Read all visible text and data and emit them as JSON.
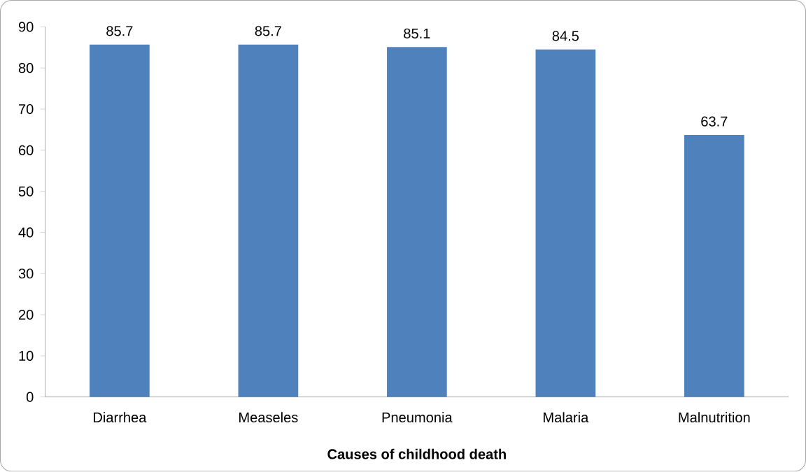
{
  "chart_data": {
    "type": "bar",
    "xlabel": "Causes of childhood death",
    "categories": [
      "Diarrhea",
      "Measeles",
      "Pneumonia",
      "Malaria",
      "Malnutrition"
    ],
    "values": [
      85.7,
      85.7,
      85.1,
      84.5,
      63.7
    ],
    "color": "#4f81bd",
    "ylim": [
      0,
      90
    ],
    "yticks": [
      0,
      10,
      20,
      30,
      40,
      50,
      60,
      70,
      80,
      90
    ],
    "data_labels": true,
    "grid": false
  }
}
